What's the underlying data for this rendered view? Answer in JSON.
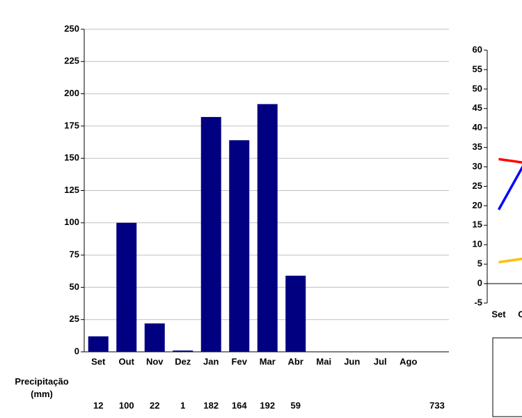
{
  "chart_data": [
    {
      "type": "bar",
      "categories": [
        "Set",
        "Out",
        "Nov",
        "Dez",
        "Jan",
        "Fev",
        "Mar",
        "Abr",
        "Mai",
        "Jun",
        "Jul",
        "Ago"
      ],
      "values": [
        12,
        100,
        22,
        1,
        182,
        164,
        192,
        59,
        null,
        null,
        null,
        null
      ],
      "color": "#000080",
      "ylim": [
        0,
        250
      ],
      "yticks": [
        0,
        25,
        50,
        75,
        100,
        125,
        150,
        175,
        200,
        225,
        250
      ],
      "grid": true,
      "row_label": [
        "Precipitação",
        "(mm)"
      ],
      "total": 733
    },
    {
      "type": "line",
      "categories": [
        "Set",
        "Out"
      ],
      "series": [
        {
          "color": "#ff0000",
          "values": [
            32,
            31
          ]
        },
        {
          "color": "#0000ff",
          "values": [
            19,
            31.5
          ]
        },
        {
          "color": "#ffc000",
          "values": [
            5.5,
            6.5
          ]
        }
      ],
      "ylim": [
        -5,
        60
      ],
      "yticks": [
        -5,
        0,
        5,
        10,
        15,
        20,
        25,
        30,
        35,
        40,
        45,
        50,
        55,
        60
      ],
      "grid": false
    }
  ]
}
